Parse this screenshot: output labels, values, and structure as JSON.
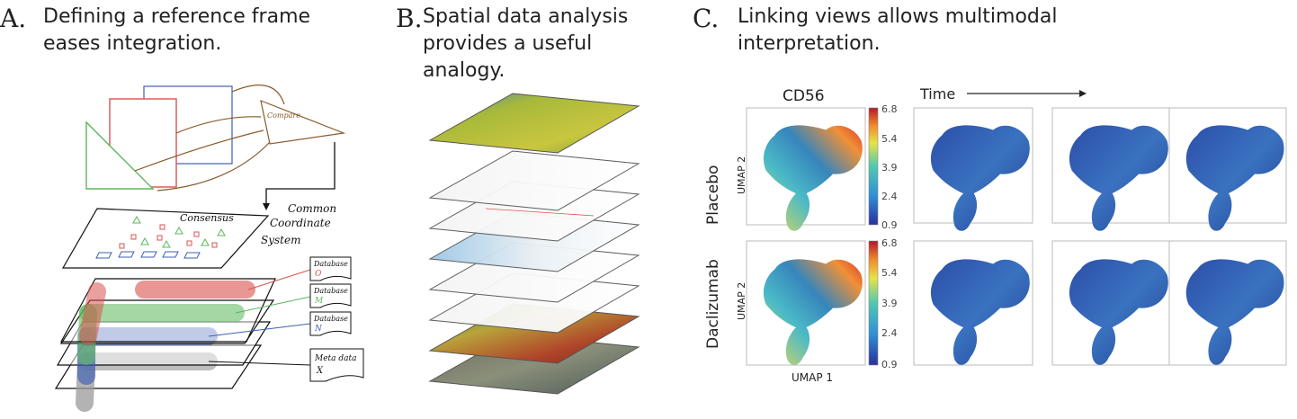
{
  "panels": {
    "a": {
      "letter": "A.",
      "heading_lines": [
        "Defining a reference frame",
        "eases integration."
      ],
      "labels": {
        "compare": "Compare",
        "consensus": "Consensus",
        "ccs_line1": "Common",
        "ccs_line2": "Coordinate",
        "ccs_line3": "System",
        "database": "Database",
        "db_letters": [
          "O",
          "M",
          "N"
        ],
        "metadata": "Meta data",
        "metadata_mark": "X"
      },
      "colors": {
        "red": "#d9534f",
        "green": "#5cb85c",
        "blue": "#3d5fb5",
        "gray": "#9a9a9a",
        "brown": "#8b5a2b"
      }
    },
    "b": {
      "letter": "B.",
      "heading_lines": [
        "Spatial data analysis",
        "provides a useful",
        "analogy."
      ]
    },
    "c": {
      "letter": "C.",
      "heading_lines": [
        "Linking views allows multimodal",
        "interpretation."
      ],
      "marker_label": "CD56",
      "time_label": "Time",
      "row_labels": [
        "Placebo",
        "Daclizumab"
      ],
      "axis_y": "UMAP 2",
      "axis_x": "UMAP 1",
      "colorbar_ticks": [
        "6.8",
        "5.4",
        "3.9",
        "2.4",
        "0.9"
      ]
    }
  }
}
